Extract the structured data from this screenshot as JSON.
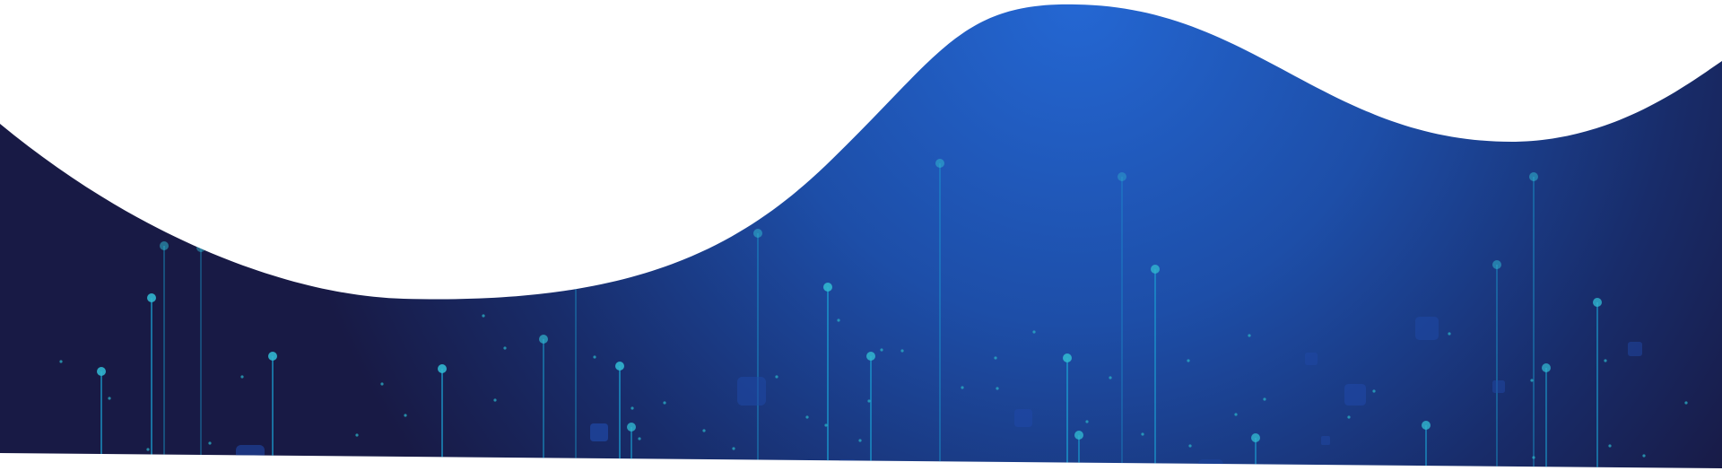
{
  "banner": {
    "colors": {
      "background": "#ffffff",
      "wave_dark": "#181a45",
      "wave_glow": "#2467d3",
      "pin_line": "#1ba6d6",
      "pin_dot": "#31b6cf",
      "square": "#1f48a6",
      "speck": "#2bb0c6"
    }
  }
}
